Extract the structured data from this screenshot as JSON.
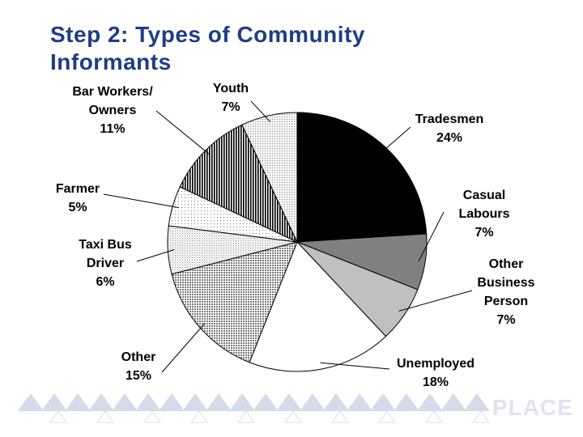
{
  "slide": {
    "title": "Step 2: Types of Community Informants",
    "footer_logo_text": "PLACE"
  },
  "chart_data": {
    "type": "pie",
    "title": "",
    "slices": [
      {
        "label": [
          "Tradesmen"
        ],
        "value": 24,
        "value_label": "24%",
        "fill": "#000000"
      },
      {
        "label": [
          "Casual",
          "Labours"
        ],
        "value": 7,
        "value_label": "7%",
        "fill": "#808080"
      },
      {
        "label": [
          "Other",
          "Business",
          "Person"
        ],
        "value": 7,
        "value_label": "7%",
        "fill": "#c0c0c0"
      },
      {
        "label": [
          "Unemployed"
        ],
        "value": 18,
        "value_label": "18%",
        "fill": "#ffffff"
      },
      {
        "label": [
          "Other"
        ],
        "value": 15,
        "value_label": "15%",
        "fill": "pattern-dense-dots"
      },
      {
        "label": [
          "Taxi Bus",
          "Driver"
        ],
        "value": 6,
        "value_label": "6%",
        "fill": "pattern-light-dots"
      },
      {
        "label": [
          "Farmer"
        ],
        "value": 5,
        "value_label": "5%",
        "fill": "pattern-sparse-dots"
      },
      {
        "label": [
          "Bar Workers/",
          "Owners"
        ],
        "value": 11,
        "value_label": "11%",
        "fill": "pattern-vertical-stripes"
      },
      {
        "label": [
          "Youth"
        ],
        "value": 7,
        "value_label": "7%",
        "fill": "pattern-grid-dots"
      }
    ]
  }
}
